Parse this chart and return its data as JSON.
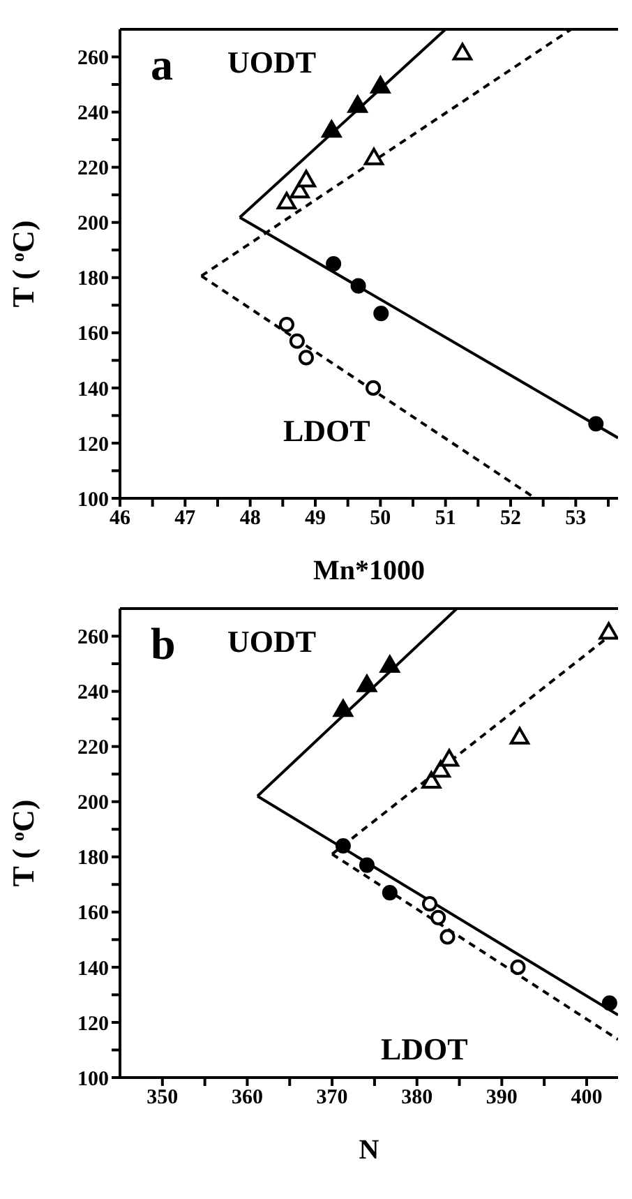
{
  "chart_data": [
    {
      "type": "scatter",
      "xlabel": "Mn*1000",
      "ylabel": "T ( $^{o}$C)",
      "xlim": [
        46,
        53.65
      ],
      "ylim": [
        100,
        270
      ],
      "xticks": [
        46,
        {
          "value": 46.5,
          "label": null
        },
        47,
        {
          "value": 47.5,
          "label": null
        },
        48,
        {
          "value": 48.5,
          "label": null
        },
        49,
        {
          "value": 49.5,
          "label": null
        },
        50,
        {
          "value": 50.5,
          "label": null
        },
        51,
        {
          "value": 51.5,
          "label": null
        },
        52,
        {
          "value": 52.5,
          "label": null
        },
        53,
        {
          "value": 53.5,
          "label": null
        }
      ],
      "yticks": [
        100,
        {
          "value": 110,
          "label": null
        },
        120,
        {
          "value": 130,
          "label": null
        },
        140,
        {
          "value": 150,
          "label": null
        },
        160,
        {
          "value": 170,
          "label": null
        },
        180,
        {
          "value": 190,
          "label": null
        },
        200,
        {
          "value": 210,
          "label": null
        },
        220,
        {
          "value": 230,
          "label": null
        },
        240,
        {
          "value": 250,
          "label": null
        },
        260
      ],
      "annotations": [
        "a",
        "UODT",
        "LDOT"
      ],
      "series": [
        {
          "marker": "triangle",
          "color": "#000000",
          "x": [
            49.25,
            49.65,
            50.0
          ],
          "values": [
            233,
            242,
            249
          ]
        },
        {
          "marker": "triangle",
          "color": "#ffffff",
          "x": [
            48.56,
            48.76,
            48.86,
            49.9,
            51.26
          ],
          "values": [
            207,
            211,
            215,
            223,
            261
          ]
        },
        {
          "marker": "circle",
          "color": "#000000",
          "x": [
            49.28,
            49.66,
            50.01,
            53.31
          ],
          "values": [
            185,
            177,
            167,
            127
          ]
        },
        {
          "marker": "circle",
          "color": "#ffffff",
          "x": [
            48.56,
            48.72,
            48.86,
            49.89
          ],
          "values": [
            163,
            157,
            151,
            140
          ]
        },
        {
          "type": "line",
          "marker": "none",
          "line_style": "solid",
          "color": "#000000",
          "x": [
            47.84,
            51.0
          ],
          "values": [
            201.8,
            270
          ]
        },
        {
          "type": "line",
          "marker": "none",
          "line_style": "solid",
          "color": "#000000",
          "x": [
            47.84,
            53.65
          ],
          "values": [
            201.8,
            121.9
          ]
        },
        {
          "type": "line",
          "marker": "none",
          "line_style": "dashed",
          "color": "#000000",
          "x": [
            47.25,
            52.93
          ],
          "values": [
            180.6,
            270
          ]
        },
        {
          "type": "line",
          "marker": "none",
          "line_style": "dashed",
          "color": "#000000",
          "x": [
            47.25,
            52.38
          ],
          "values": [
            180.6,
            100
          ]
        }
      ]
    },
    {
      "type": "scatter",
      "xlabel": "N",
      "ylabel": "T ( $^{o}$C)",
      "xlim": [
        345,
        403.7
      ],
      "ylim": [
        100,
        270
      ],
      "xticks": [
        350,
        {
          "value": 355,
          "label": null
        },
        360,
        {
          "value": 365,
          "label": null
        },
        370,
        {
          "value": 375,
          "label": null
        },
        380,
        {
          "value": 385,
          "label": null
        },
        390,
        {
          "value": 395,
          "label": null
        },
        400
      ],
      "yticks": [
        100,
        {
          "value": 110,
          "label": null
        },
        120,
        {
          "value": 130,
          "label": null
        },
        140,
        {
          "value": 150,
          "label": null
        },
        160,
        {
          "value": 170,
          "label": null
        },
        180,
        {
          "value": 190,
          "label": null
        },
        200,
        {
          "value": 210,
          "label": null
        },
        220,
        {
          "value": 230,
          "label": null
        },
        240,
        {
          "value": 250,
          "label": null
        },
        260
      ],
      "annotations": [
        "b",
        "UODT",
        "LDOT"
      ],
      "series": [
        {
          "marker": "triangle",
          "color": "#000000",
          "x": [
            371.3,
            374.1,
            376.8
          ],
          "values": [
            233,
            242,
            249
          ]
        },
        {
          "marker": "triangle",
          "color": "#ffffff",
          "x": [
            381.7,
            382.8,
            383.8,
            392.1,
            402.6
          ],
          "values": [
            207,
            211,
            215,
            223,
            261
          ]
        },
        {
          "marker": "circle",
          "color": "#000000",
          "x": [
            371.3,
            374.1,
            376.8,
            402.7
          ],
          "values": [
            184,
            177,
            167,
            127
          ]
        },
        {
          "marker": "circle",
          "color": "#ffffff",
          "x": [
            381.5,
            382.5,
            383.6,
            391.9
          ],
          "values": [
            163,
            158,
            151,
            140
          ]
        },
        {
          "type": "line",
          "marker": "none",
          "line_style": "solid",
          "color": "#000000",
          "x": [
            361.2,
            384.7
          ],
          "values": [
            202,
            270
          ]
        },
        {
          "type": "line",
          "marker": "none",
          "line_style": "solid",
          "color": "#000000",
          "x": [
            361.2,
            403.7
          ],
          "values": [
            202,
            122.7
          ]
        },
        {
          "type": "line",
          "marker": "none",
          "line_style": "dashed",
          "color": "#000000",
          "x": [
            370.0,
            403.7
          ],
          "values": [
            181,
            262.5
          ]
        },
        {
          "type": "line",
          "marker": "none",
          "line_style": "dashed",
          "color": "#000000",
          "x": [
            370.0,
            403.7
          ],
          "values": [
            181,
            113.8
          ]
        }
      ]
    }
  ]
}
